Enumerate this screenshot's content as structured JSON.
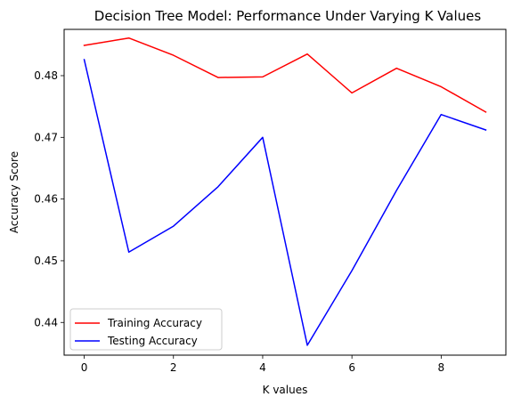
{
  "chart_data": {
    "type": "line",
    "title": "Decision Tree Model: Performance Under Varying K Values",
    "xlabel": "K values",
    "ylabel": "Accuracy Score",
    "x": [
      0,
      1,
      2,
      3,
      4,
      5,
      6,
      7,
      8,
      9
    ],
    "xlim": [
      -0.45,
      9.45
    ],
    "ylim": [
      0.4347,
      0.4875
    ],
    "xticks": [
      0,
      2,
      4,
      6,
      8
    ],
    "yticks": [
      0.44,
      0.45,
      0.46,
      0.47,
      0.48
    ],
    "xtick_labels": [
      "0",
      "2",
      "4",
      "6",
      "8"
    ],
    "ytick_labels": [
      "0.44",
      "0.45",
      "0.46",
      "0.47",
      "0.48"
    ],
    "grid": false,
    "legend_position": "lower-left",
    "series": [
      {
        "name": "Training Accuracy",
        "color": "#ff0000",
        "values": [
          0.4849,
          0.4861,
          0.4833,
          0.4797,
          0.4798,
          0.4835,
          0.4772,
          0.4812,
          0.4782,
          0.4741
        ]
      },
      {
        "name": "Testing Accuracy",
        "color": "#0000ff",
        "values": [
          0.4826,
          0.4514,
          0.4556,
          0.462,
          0.47,
          0.4363,
          0.4484,
          0.4614,
          0.4737,
          0.4712
        ]
      }
    ]
  }
}
